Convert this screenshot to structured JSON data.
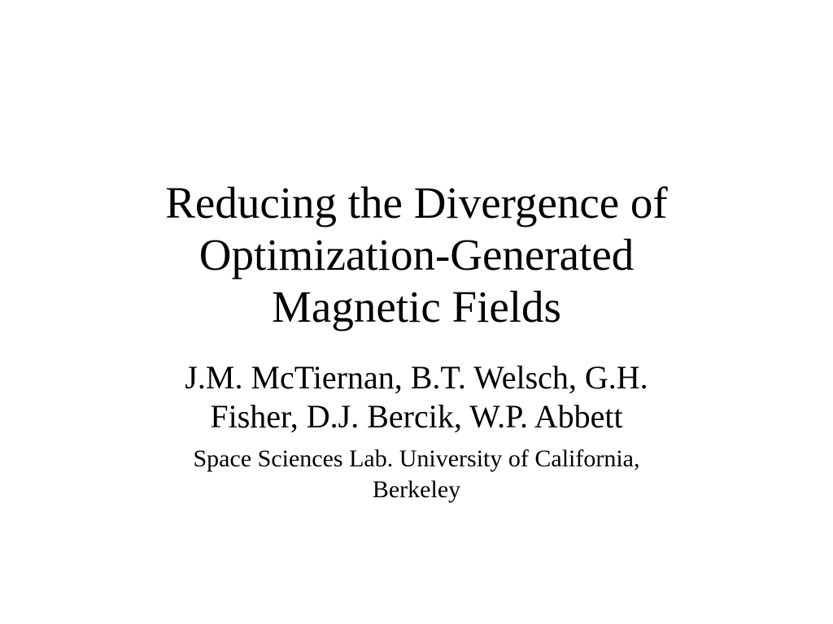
{
  "slide": {
    "title_lines": [
      "Reducing the Divergence of",
      "Optimization-Generated",
      "Magnetic Fields"
    ],
    "author_lines": [
      "J.M. McTiernan, B.T. Welsch, G.H.",
      "Fisher, D.J. Bercik, W.P. Abbett"
    ],
    "affiliation_lines": [
      "Space Sciences Lab. University of California,",
      "Berkeley"
    ]
  }
}
